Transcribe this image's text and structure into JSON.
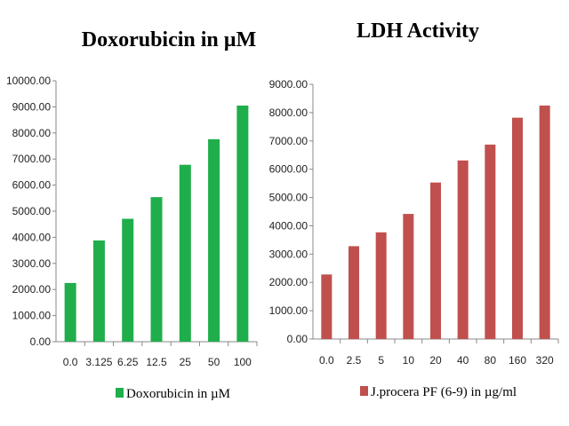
{
  "chart_data": [
    {
      "type": "bar",
      "title": "Doxorubicin in µM",
      "categories": [
        "0.0",
        "3.125",
        "6.25",
        "12.5",
        "25",
        "50",
        "100"
      ],
      "series": [
        {
          "name": "Doxorubicin in µM",
          "values": [
            2250,
            3880,
            4710,
            5540,
            6780,
            7760,
            9050
          ],
          "color": "#1fae4b"
        }
      ],
      "ylim": [
        0,
        10000
      ],
      "yticks": [
        "0.00",
        "1000.00",
        "2000.00",
        "3000.00",
        "4000.00",
        "5000.00",
        "6000.00",
        "7000.00",
        "8000.00",
        "9000.00",
        "10000.00"
      ],
      "xlabel": "",
      "ylabel": "",
      "grid": false,
      "legend": "bottom"
    },
    {
      "type": "bar",
      "title": "LDH Activity",
      "categories": [
        "0.0",
        "2.5",
        "5",
        "10",
        "20",
        "40",
        "80",
        "160",
        "320"
      ],
      "series": [
        {
          "name": "J.procera PF (6-9) in µg/ml",
          "values": [
            2280,
            3280,
            3770,
            4420,
            5530,
            6310,
            6870,
            7820,
            8250
          ],
          "color": "#c0504d"
        }
      ],
      "ylim": [
        0,
        9000
      ],
      "yticks": [
        "0.00",
        "1000.00",
        "2000.00",
        "3000.00",
        "4000.00",
        "5000.00",
        "6000.00",
        "7000.00",
        "8000.00",
        "9000.00"
      ],
      "xlabel": "",
      "ylabel": "",
      "grid": false,
      "legend": "bottom"
    }
  ]
}
